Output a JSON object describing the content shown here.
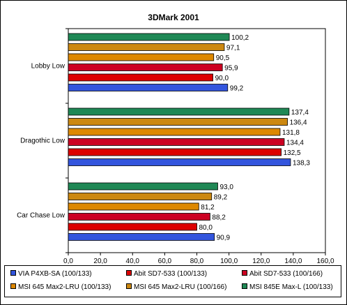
{
  "chart_data": {
    "type": "bar",
    "orientation": "horizontal",
    "title": "3DMark 2001",
    "categories": [
      "Lobby Low",
      "Dragothic Low",
      "Car Chase Low"
    ],
    "series": [
      {
        "name": "VIA P4XB-SA (100/133)",
        "color": "#3355dd",
        "values": [
          99.2,
          138.3,
          90.9
        ]
      },
      {
        "name": "Abit SD7-533 (100/133)",
        "color": "#dd0000",
        "values": [
          90.0,
          132.5,
          80.0
        ]
      },
      {
        "name": "Abit SD7-533 (100/166)",
        "color": "#cc0022",
        "values": [
          95.9,
          134.4,
          88.2
        ]
      },
      {
        "name": "MSI 645 Max2-LRU (100/133)",
        "color": "#dd8800",
        "values": [
          90.5,
          131.8,
          81.2
        ]
      },
      {
        "name": "MSI 645 Max2-LRU (100/166)",
        "color": "#cc8811",
        "values": [
          97.1,
          136.4,
          89.2
        ]
      },
      {
        "name": "MSI 845E Max-L (100/133)",
        "color": "#1f8855",
        "values": [
          100.2,
          137.4,
          93.0
        ]
      }
    ],
    "value_labels": [
      [
        "99,2",
        "90,0",
        "95,9",
        "90,5",
        "97,1",
        "100,2"
      ],
      [
        "138,3",
        "132,5",
        "134,4",
        "131,8",
        "136,4",
        "137,4"
      ],
      [
        "90,9",
        "80,0",
        "88,2",
        "81,2",
        "89,2",
        "93,0"
      ]
    ],
    "xlim": [
      0,
      160
    ],
    "x_ticks": [
      "0,0",
      "20,0",
      "40,0",
      "60,0",
      "80,0",
      "100,0",
      "120,0",
      "140,0",
      "160,0"
    ],
    "grid": false,
    "legend_position": "bottom"
  }
}
